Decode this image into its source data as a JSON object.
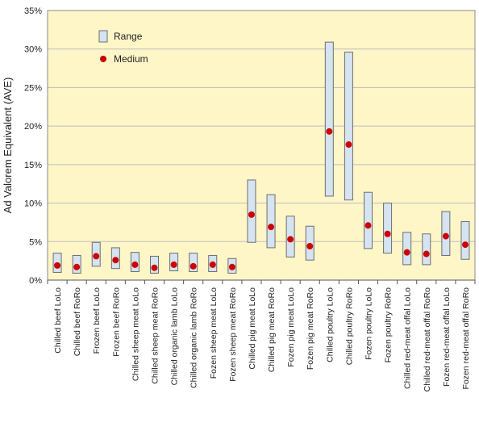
{
  "chart_data": {
    "type": "range-dot",
    "ylabel": "Ad Valorem Equivalent (AVE)",
    "ylim": [
      0,
      35
    ],
    "y_ticks": [
      "0%",
      "5%",
      "10%",
      "15%",
      "20%",
      "25%",
      "30%",
      "35%"
    ],
    "grid": "horizontal",
    "legend_position": "top-left",
    "legend": [
      {
        "label": "Range",
        "marker": "box"
      },
      {
        "label": "Medium",
        "marker": "dot"
      }
    ],
    "colors": {
      "plot_bg": "#FFF6C8",
      "range_fill": "#D6E3F0",
      "range_stroke": "#6E6E6E",
      "dot": "#CC0000",
      "grid": "#BDBDBD"
    },
    "categories": [
      "Chilled beef LoLo",
      "Chilled beef RoRo",
      "Frozen beef LoLo",
      "Frozen beef RoRo",
      "Chilled sheep meat LoLo",
      "Chilled sheep meat RoRo",
      "Chilled organic lamb LoLo",
      "Chilled organic lamb RoRo",
      "Fozen sheep meat LoLo",
      "Fozen sheep meat RoRo",
      "Chilled pig meat LoLo",
      "Chilled pig meat RoRo",
      "Fozen pig meat LoLo",
      "Fozen pig meat RoRo",
      "Chilled poultry LoLo",
      "Chilled poultry RoRo",
      "Fozen poultry LoLo",
      "Fozen poultry RoRo",
      "Chilled red-meat offal LoLo",
      "Chilled red-meat offal RoRo",
      "Fozen red-meat offal LoLo",
      "Fozen red-meat offal RoRo"
    ],
    "series": [
      {
        "name": "Range",
        "low": [
          1.0,
          0.9,
          1.8,
          1.5,
          1.1,
          0.9,
          1.2,
          1.1,
          1.1,
          0.9,
          4.9,
          4.2,
          3.0,
          2.6,
          10.9,
          10.4,
          4.1,
          3.5,
          2.0,
          2.0,
          3.2,
          2.7
        ],
        "high": [
          3.5,
          3.2,
          4.9,
          4.2,
          3.6,
          3.1,
          3.5,
          3.5,
          3.2,
          2.8,
          13.0,
          11.1,
          8.3,
          7.0,
          30.9,
          29.6,
          11.4,
          10.0,
          6.2,
          6.0,
          8.9,
          7.6
        ]
      },
      {
        "name": "Medium",
        "values": [
          1.9,
          1.7,
          3.1,
          2.6,
          2.0,
          1.6,
          2.0,
          1.8,
          2.0,
          1.7,
          8.5,
          6.9,
          5.3,
          4.4,
          19.3,
          17.6,
          7.1,
          6.0,
          3.6,
          3.4,
          5.7,
          4.6
        ]
      }
    ]
  }
}
